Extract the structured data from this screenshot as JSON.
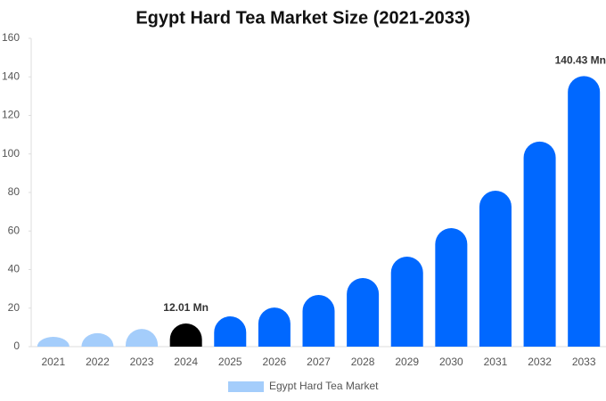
{
  "chart_data": {
    "type": "bar",
    "title": "Egypt Hard Tea Market Size (2021-2033)",
    "categories": [
      "2021",
      "2022",
      "2023",
      "2024",
      "2025",
      "2026",
      "2027",
      "2028",
      "2029",
      "2030",
      "2031",
      "2032",
      "2033"
    ],
    "series": [
      {
        "name": "Egypt Hard Tea Market",
        "color": "#a4cdfb",
        "values": [
          5.1,
          7,
          9.2,
          12.01,
          15.7,
          20.3,
          26.8,
          35.6,
          46.7,
          61.5,
          80.9,
          106.4,
          140.43
        ],
        "value_labels": [
          null,
          null,
          null,
          "12.01 Mn",
          null,
          null,
          null,
          null,
          null,
          null,
          null,
          null,
          "140.43 Mn"
        ],
        "bar_colors": [
          "#a4cdfb",
          "#a4cdfb",
          "#a4cdfb",
          "#000000",
          "#0068ff",
          "#0068ff",
          "#0068ff",
          "#0068ff",
          "#0068ff",
          "#0068ff",
          "#0068ff",
          "#0068ff",
          "#0068ff"
        ]
      }
    ],
    "ylim": [
      0,
      160
    ],
    "yticks": [
      0,
      20,
      40,
      60,
      80,
      100,
      120,
      140,
      160
    ],
    "grid": false,
    "legend": "bottom"
  }
}
